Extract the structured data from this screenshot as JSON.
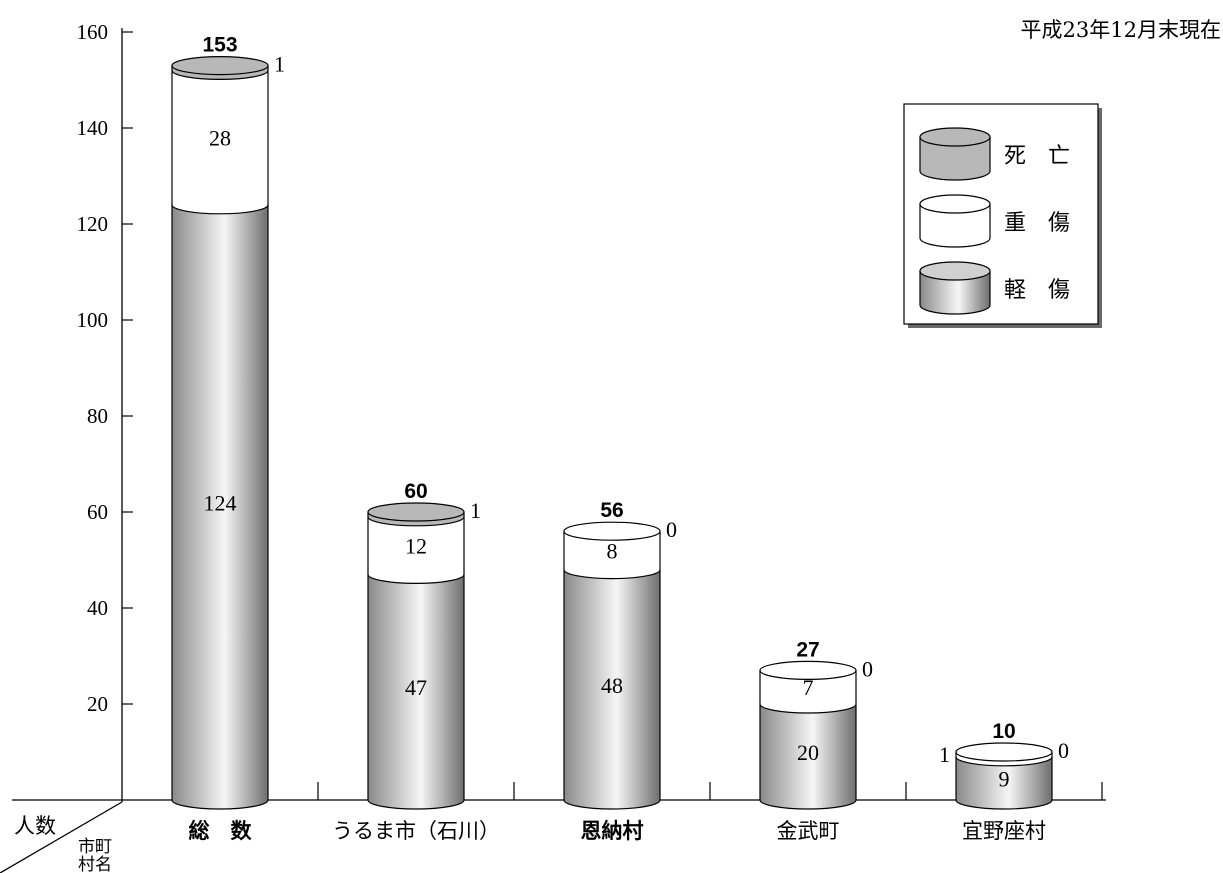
{
  "note": "平成23年12月末現在",
  "corner": {
    "y_axis_label": "人数",
    "x_axis_label_line1": "市町",
    "x_axis_label_line2": "村名"
  },
  "colors": {
    "death": "#b8b8b8",
    "serious": "#ffffff",
    "minor_light": "#f4f4f4",
    "minor_dark": "#7a7a7a"
  },
  "chart_data": {
    "type": "bar",
    "stacked": true,
    "style": "3d-cylinder",
    "categories": [
      "総　数",
      "うるま市（石川）",
      "恩納村",
      "金武町",
      "宜野座村"
    ],
    "series": [
      {
        "name": "軽　傷",
        "values": [
          124,
          47,
          48,
          20,
          9
        ]
      },
      {
        "name": "重　傷",
        "values": [
          28,
          12,
          8,
          7,
          1
        ]
      },
      {
        "name": "死　亡",
        "values": [
          1,
          1,
          0,
          0,
          0
        ]
      }
    ],
    "totals": [
      153,
      60,
      56,
      27,
      10
    ],
    "ylim": [
      0,
      160
    ],
    "yticks": [
      20,
      40,
      60,
      80,
      100,
      120,
      140,
      160
    ],
    "legend": "top-right",
    "grid": false
  }
}
